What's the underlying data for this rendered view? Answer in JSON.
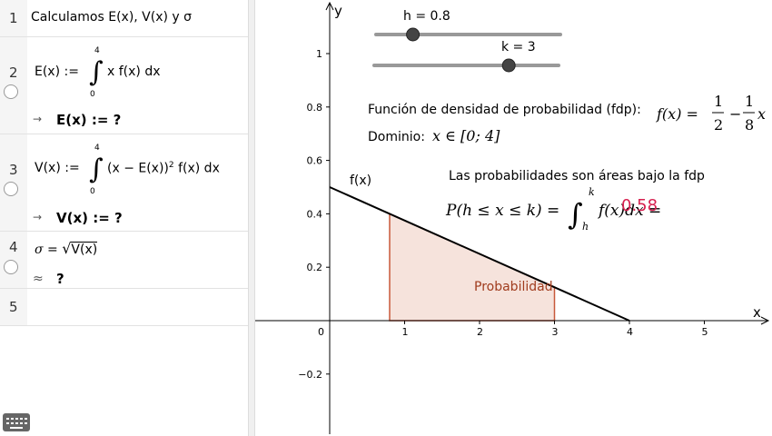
{
  "algebra": {
    "rows": [
      {
        "num": "1",
        "text": "Calculamos E(x), V(x) y σ"
      },
      {
        "num": "2",
        "lhs": "E(x) :=",
        "upper": "4",
        "lower": "0",
        "integrand": "x f(x) dx",
        "output": "E(x)  :=  ?",
        "arrow": "→"
      },
      {
        "num": "3",
        "lhs": "V(x) :=",
        "upper": "4",
        "lower": "0",
        "integrand": "(x − E(x))",
        "exp": "2",
        "integrand2": "f(x) dx",
        "output": "V(x)  :=  ?",
        "arrow": "→"
      },
      {
        "num": "4",
        "lhs": "σ =",
        "sqrt": "√",
        "radicand": "V(x)",
        "output": "?",
        "arrow": "≈"
      },
      {
        "num": "5"
      }
    ]
  },
  "graph": {
    "axis_x_label": "x",
    "axis_y_label": "y",
    "x_ticks": [
      {
        "v": 1,
        "label": "1"
      },
      {
        "v": 2,
        "label": "2"
      },
      {
        "v": 3,
        "label": "3"
      },
      {
        "v": 4,
        "label": "4"
      },
      {
        "v": 5,
        "label": "5"
      }
    ],
    "y_ticks": [
      {
        "v": 1,
        "label": "1"
      },
      {
        "v": 0.8,
        "label": "0.8"
      },
      {
        "v": 0.6,
        "label": "0.6"
      },
      {
        "v": 0.4,
        "label": "0.4"
      },
      {
        "v": 0.2,
        "label": "0.2"
      },
      {
        "v": -0.2,
        "label": "−0.2"
      }
    ],
    "origin_label": "0",
    "function_label": "f(x)",
    "area_label": "Probabilidad",
    "h": 0.8,
    "k": 3,
    "slider_h": {
      "label": "h = 0.8",
      "fraction": 0.2
    },
    "slider_k": {
      "label": "k = 3",
      "fraction": 0.73
    },
    "fdp_text": "Función de densidad de probabilidad (fdp):",
    "fdp_formula": {
      "lhs": "f(x) =",
      "a_num": "1",
      "a_den": "2",
      "minus": "−",
      "b_num": "1",
      "b_den": "8",
      "var": "x"
    },
    "domain_text": "Dominio:",
    "domain_formula": "x ∈ [0; 4]",
    "prob_text": "Las probabilidades son áreas bajo la fdp",
    "prob_formula": {
      "lhs": "P(h ≤ x ≤ k) =",
      "upper": "k",
      "lower": "h",
      "integrand": "f(x)dx =",
      "value": "0.58"
    },
    "colors": {
      "area_fill": "#f6e3dc",
      "area_stroke": "#c8593a",
      "area_label": "#a03c1e",
      "value": "#d6204f",
      "slider_track": "#999999",
      "slider_knob": "#444444"
    }
  }
}
